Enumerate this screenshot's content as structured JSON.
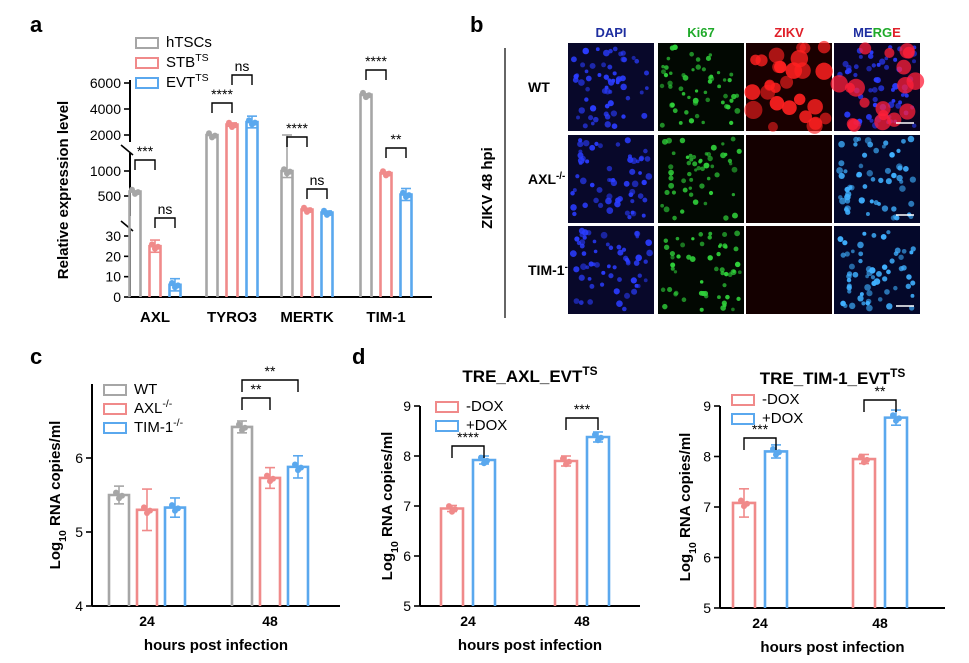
{
  "colors": {
    "gray": "#a6a6a6",
    "pink": "#f08a8a",
    "blue": "#5aa8ee",
    "axis": "#000000"
  },
  "panel_b": {
    "label": "b",
    "side_label": "ZIKV 48 hpi",
    "columns": [
      {
        "label": "DAPI",
        "color": "#1f2fa0"
      },
      {
        "label": "Ki67",
        "color": "#1faa2a"
      },
      {
        "label": "ZIKV",
        "color": "#e0202a"
      },
      {
        "label": "MERGE",
        "color": "#1f2fa0"
      }
    ],
    "rows": [
      {
        "name": "WT",
        "sup": ""
      },
      {
        "name": "AXL",
        "sup": "-/-"
      },
      {
        "name": "TIM-1",
        "sup": "-/-"
      }
    ],
    "image_content": [
      [
        "dapi",
        "ki67",
        "zikv-strong",
        "merge-red"
      ],
      [
        "dapi",
        "ki67",
        "zikv-none",
        "merge-cyan"
      ],
      [
        "dapi",
        "ki67",
        "zikv-none",
        "merge-cyan"
      ]
    ]
  },
  "chart_data": [
    {
      "panel": "a",
      "type": "bar",
      "ylabel": "Relative expression level",
      "y_ticks": [
        "0",
        "10",
        "20",
        "30",
        "500",
        "1000",
        "2000",
        "4000",
        "6000"
      ],
      "categories": [
        "AXL",
        "TYRO3",
        "MERTK",
        "TIM-1"
      ],
      "series": [
        {
          "name": "hTSCs",
          "sup": "",
          "color": "gray",
          "values": [
            590,
            1560,
            1000,
            5100
          ],
          "errors": [
            10,
            30,
            130,
            60
          ]
        },
        {
          "name": "STB",
          "sup": "TS",
          "color": "pink",
          "values": [
            25,
            2800,
            230,
            960
          ],
          "errors": [
            3,
            130,
            25,
            20
          ]
        },
        {
          "name": "EVT",
          "sup": "TS",
          "color": "blue",
          "values": [
            6,
            3000,
            170,
            530
          ],
          "errors": [
            3,
            450,
            30,
            120
          ]
        }
      ],
      "significance": [
        {
          "category": "AXL",
          "from": 0,
          "to": 1,
          "label": "***"
        },
        {
          "category": "AXL",
          "from": 1,
          "to": 2,
          "label": "ns"
        },
        {
          "category": "TYRO3",
          "from": 0,
          "to": 1,
          "label": "****"
        },
        {
          "category": "TYRO3",
          "from": 1,
          "to": 2,
          "label": "ns"
        },
        {
          "category": "MERTK",
          "from": 0,
          "to": 1,
          "label": "****"
        },
        {
          "category": "MERTK",
          "from": 1,
          "to": 2,
          "label": "ns"
        },
        {
          "category": "TIM-1",
          "from": 0,
          "to": 1,
          "label": "****"
        },
        {
          "category": "TIM-1",
          "from": 1,
          "to": 2,
          "label": "**"
        }
      ]
    },
    {
      "panel": "c",
      "type": "bar",
      "ylabel_prefix": "Log",
      "ylabel_sub": "10",
      "ylabel_rest": " RNA copies/ml",
      "xlabel": "hours post infection",
      "ylim": [
        4,
        7
      ],
      "y_ticks": [
        "4",
        "5",
        "6"
      ],
      "categories": [
        "24",
        "48"
      ],
      "series": [
        {
          "name": "WT",
          "sup": "",
          "color": "gray",
          "values": [
            5.5,
            6.42
          ],
          "errors": [
            0.12,
            0.08
          ]
        },
        {
          "name": "AXL",
          "sup": "-/-",
          "color": "pink",
          "values": [
            5.3,
            5.73
          ],
          "errors": [
            0.28,
            0.14
          ]
        },
        {
          "name": "TIM-1",
          "sup": "-/-",
          "color": "blue",
          "values": [
            5.33,
            5.88
          ],
          "errors": [
            0.13,
            0.15
          ]
        }
      ],
      "significance": [
        {
          "category": "48",
          "from": 0,
          "to": 1,
          "label": "**"
        },
        {
          "category": "48",
          "from": 0,
          "to": 2,
          "label": "**"
        }
      ]
    },
    {
      "panel": "d",
      "type": "bar",
      "title": "TRE_AXL_EVT",
      "title_sup": "TS",
      "ylabel_prefix": "Log",
      "ylabel_sub": "10",
      "ylabel_rest": " RNA copies/ml",
      "xlabel": "hours post infection",
      "ylim": [
        5,
        9
      ],
      "y_ticks": [
        "5",
        "6",
        "7",
        "8",
        "9"
      ],
      "categories": [
        "24",
        "48"
      ],
      "series": [
        {
          "name": "-DOX",
          "color": "pink",
          "values": [
            6.95,
            7.9
          ],
          "errors": [
            0.06,
            0.1
          ]
        },
        {
          "name": "+DOX",
          "color": "blue",
          "values": [
            7.92,
            8.38
          ],
          "errors": [
            0.08,
            0.1
          ]
        }
      ],
      "significance": [
        {
          "category": "24",
          "from": 0,
          "to": 1,
          "label": "****"
        },
        {
          "category": "48",
          "from": 0,
          "to": 1,
          "label": "***"
        }
      ]
    },
    {
      "panel": "d2",
      "type": "bar",
      "title": "TRE_TIM-1_EVT",
      "title_sup": "TS",
      "ylabel_prefix": "Log",
      "ylabel_sub": "10",
      "ylabel_rest": " RNA copies/ml",
      "xlabel": "hours post infection",
      "ylim": [
        5,
        9
      ],
      "y_ticks": [
        "5",
        "6",
        "7",
        "8",
        "9"
      ],
      "categories": [
        "24",
        "48"
      ],
      "series": [
        {
          "name": "-DOX",
          "color": "pink",
          "values": [
            7.08,
            7.95
          ],
          "errors": [
            0.28,
            0.09
          ]
        },
        {
          "name": "+DOX",
          "color": "blue",
          "values": [
            8.1,
            8.77
          ],
          "errors": [
            0.13,
            0.15
          ]
        }
      ],
      "significance": [
        {
          "category": "24",
          "from": 0,
          "to": 1,
          "label": "***"
        },
        {
          "category": "48",
          "from": 0,
          "to": 1,
          "label": "**"
        }
      ]
    }
  ]
}
